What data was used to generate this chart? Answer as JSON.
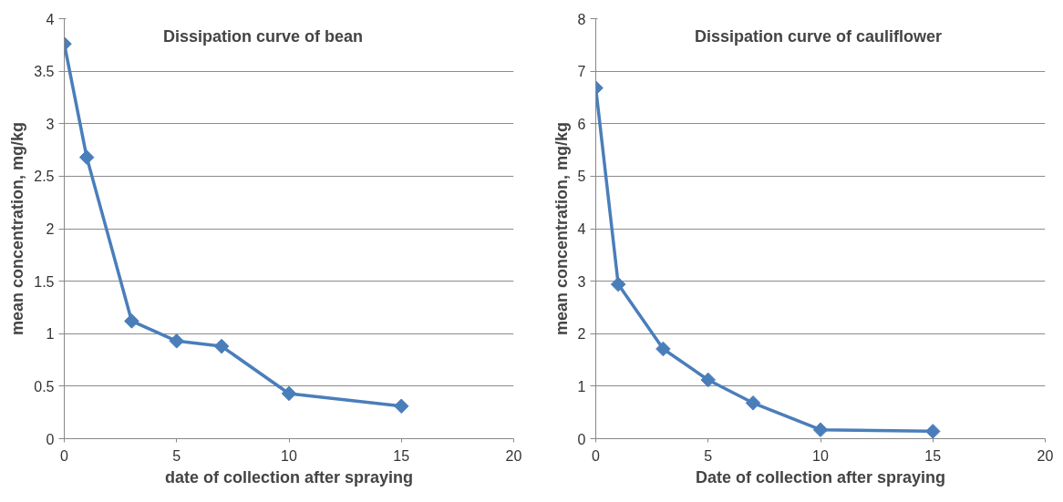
{
  "chart_data": [
    {
      "type": "line",
      "title": "Dissipation curve of bean",
      "xlabel": "date of collection after spraying",
      "ylabel": "mean concentration, mg/kg",
      "x": [
        0,
        1,
        3,
        5,
        7,
        10,
        15
      ],
      "series": [
        {
          "color": "#4a7ebb",
          "values": [
            3.76,
            2.68,
            1.12,
            0.93,
            0.88,
            0.43,
            0.31
          ]
        }
      ],
      "xlim": [
        0,
        20
      ],
      "xticks": [
        0,
        5,
        10,
        15,
        20
      ],
      "ylim": [
        0,
        4
      ],
      "yticks": [
        0,
        0.5,
        1,
        1.5,
        2,
        2.5,
        3,
        3.5,
        4
      ],
      "grid": "y",
      "marker": "diamond",
      "line_style": "solid"
    },
    {
      "type": "line",
      "title": "Dissipation curve of cauliflower",
      "xlabel": "Date of collection after spraying",
      "ylabel": "mean concentration, mg/kg",
      "x": [
        0,
        1,
        3,
        5,
        7,
        10,
        15
      ],
      "series": [
        {
          "color": "#4a7ebb",
          "values": [
            6.68,
            2.94,
            1.71,
            1.12,
            0.68,
            0.17,
            0.14
          ]
        }
      ],
      "xlim": [
        0,
        20
      ],
      "xticks": [
        0,
        5,
        10,
        15,
        20
      ],
      "ylim": [
        0,
        8
      ],
      "yticks": [
        0,
        1,
        2,
        3,
        4,
        5,
        6,
        7,
        8
      ],
      "grid": "y",
      "marker": "diamond",
      "line_style": "solid"
    }
  ]
}
